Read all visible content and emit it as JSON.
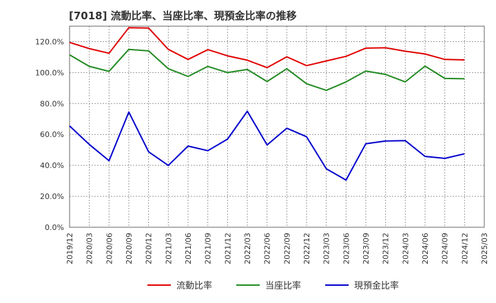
{
  "title": "[7018]  流動比率、当座比率、現預金比率の推移",
  "chart_data": {
    "type": "line",
    "title": "[7018]  流動比率、当座比率、現預金比率の推移",
    "xlabel": "",
    "ylabel": "",
    "ylim": [
      0,
      130
    ],
    "yticks": [
      0,
      20,
      40,
      60,
      80,
      100,
      120
    ],
    "ytick_labels": [
      "0.0%",
      "20.0%",
      "40.0%",
      "60.0%",
      "80.0%",
      "100.0%",
      "120.0%"
    ],
    "x_tick_labels": [
      "2019/12",
      "2020/03",
      "2020/06",
      "2020/09",
      "2020/12",
      "2021/03",
      "2021/06",
      "2021/09",
      "2021/12",
      "2022/03",
      "2022/06",
      "2022/09",
      "2022/12",
      "2023/03",
      "2023/06",
      "2023/09",
      "2023/12",
      "2024/03",
      "2024/06",
      "2024/09",
      "2024/12",
      "2025/03"
    ],
    "categories": [
      "2019/12",
      "2020/03",
      "2020/06",
      "2020/09",
      "2020/12",
      "2021/03",
      "2021/06",
      "2021/09",
      "2021/12",
      "2022/03",
      "2022/06",
      "2022/09",
      "2022/12",
      "2023/03",
      "2023/06",
      "2023/09",
      "2023/12",
      "2024/03",
      "2024/06",
      "2024/09",
      "2024/12"
    ],
    "grid": true,
    "legend_position": "bottom",
    "series": [
      {
        "name": "流動比率",
        "color": "#e00000",
        "values": [
          119.5,
          115.5,
          112.5,
          129.0,
          128.8,
          115.0,
          108.5,
          114.8,
          110.8,
          108.0,
          103.2,
          110.2,
          104.5,
          107.5,
          110.5,
          115.8,
          116.0,
          113.8,
          112.0,
          108.5,
          108.2
        ]
      },
      {
        "name": "当座比率",
        "color": "#228b22",
        "values": [
          111.5,
          104.0,
          100.8,
          115.0,
          114.0,
          102.5,
          97.5,
          104.0,
          100.0,
          102.0,
          94.2,
          102.5,
          92.8,
          88.5,
          94.0,
          101.0,
          98.8,
          94.0,
          104.2,
          96.2,
          96.0
        ]
      },
      {
        "name": "現預金比率",
        "color": "#0000cc",
        "values": [
          65.5,
          53.5,
          43.0,
          74.5,
          48.8,
          40.0,
          52.5,
          49.5,
          57.0,
          75.0,
          53.2,
          64.0,
          58.5,
          37.8,
          30.5,
          54.0,
          55.8,
          56.0,
          45.8,
          44.5,
          47.5
        ]
      }
    ]
  }
}
